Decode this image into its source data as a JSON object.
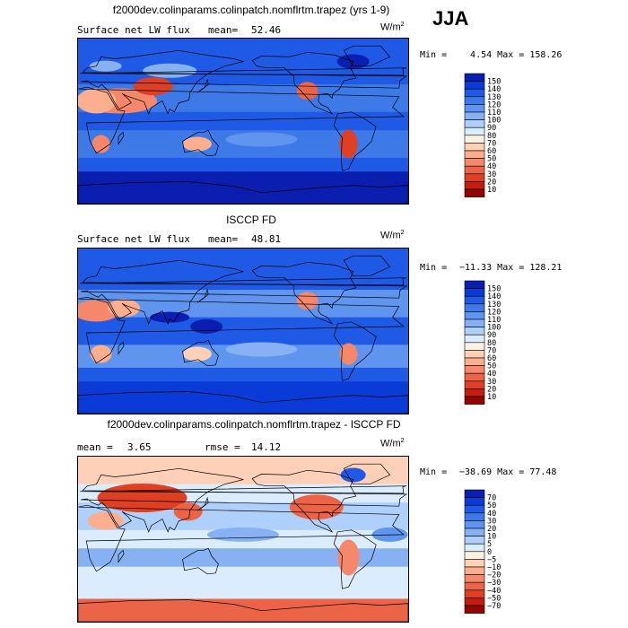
{
  "season": "JJA",
  "colors": {
    "ramp_abs": [
      "#08086b",
      "#0a1eb0",
      "#0b3bd6",
      "#1e5ae6",
      "#3d7ae8",
      "#5f95ef",
      "#86b2f4",
      "#afd0fa",
      "#dcecff",
      "#fff0e6",
      "#ffd0b8",
      "#fcae8e",
      "#f5876a",
      "#ec6447",
      "#df3f23",
      "#c41d0c",
      "#930500"
    ],
    "ramp_diff": [
      "#08086b",
      "#0a1eb0",
      "#0b3bd6",
      "#1e5ae6",
      "#3d7ae8",
      "#5f95ef",
      "#86b2f4",
      "#afd0fa",
      "#dcecff",
      "#fff0e6",
      "#ffd0b8",
      "#fcae8e",
      "#f5876a",
      "#ec6447",
      "#df3f23",
      "#c41d0c",
      "#930500"
    ]
  },
  "panels": [
    {
      "title": "f2000dev.colinparams.colinpatch.nomflrtm.trapez (yrs 1-9)",
      "left_label": "Surface net LW flux",
      "stat_label": "mean=",
      "stat_value": "52.46",
      "units_base": "W/m",
      "units_exp": "2",
      "min_label": "Min =",
      "min_value": "4.54",
      "max_label": "Max =",
      "max_value": "158.26",
      "levels": [
        "150",
        "140",
        "130",
        "120",
        "110",
        "100",
        "90",
        "80",
        "70",
        "60",
        "50",
        "40",
        "30",
        "20",
        "10"
      ],
      "kind": "model"
    },
    {
      "title": "ISCCP FD",
      "left_label": "Surface net LW flux",
      "stat_label": "mean=",
      "stat_value": "48.81",
      "units_base": "W/m",
      "units_exp": "2",
      "min_label": "Min =",
      "min_value": "−11.33",
      "max_label": "Max =",
      "max_value": "128.21",
      "levels": [
        "150",
        "140",
        "130",
        "120",
        "110",
        "100",
        "90",
        "80",
        "70",
        "60",
        "50",
        "40",
        "30",
        "20",
        "10"
      ],
      "kind": "obs"
    },
    {
      "title": "f2000dev.colinparams.colinpatch.nomflrtm.trapez - ISCCP FD",
      "left_label": "mean =",
      "stat_label": "rmse =",
      "mean_value": "3.65",
      "stat_value": "14.12",
      "units_base": "W/m",
      "units_exp": "2",
      "min_label": "Min =",
      "min_value": "−38.69",
      "max_label": "Max =",
      "max_value": "77.48",
      "levels": [
        "70",
        "50",
        "40",
        "30",
        "20",
        "10",
        "5",
        "0",
        "−5",
        "−10",
        "−20",
        "−30",
        "−40",
        "−50",
        "−70"
      ],
      "kind": "diff"
    }
  ]
}
